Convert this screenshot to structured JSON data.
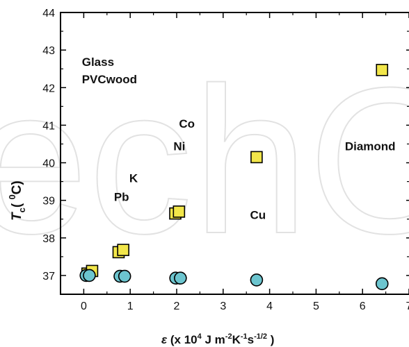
{
  "chart_data": {
    "type": "scatter",
    "xlim": [
      -0.5,
      7
    ],
    "ylim": [
      36.5,
      44
    ],
    "x_ticks": [
      "0",
      "1",
      "2",
      "3",
      "4",
      "5",
      "6",
      "7"
    ],
    "y_ticks": [
      "37",
      "38",
      "39",
      "40",
      "41",
      "42",
      "43",
      "44"
    ],
    "xlabel": {
      "symbol": "ε",
      "text_a": " (x 10",
      "sup_a": "4",
      "text_b": " J m",
      "sup_b": "-2",
      "text_c": "K",
      "sup_c": "-1",
      "text_d": "s",
      "sup_d": "-1/2",
      "text_e": " )"
    },
    "ylabel": {
      "symbol": "T",
      "sub": "c",
      "text_a": "( ",
      "sup": "0",
      "text_b": "C)"
    },
    "grid": false,
    "legend": "none",
    "series": [
      {
        "marker": "square",
        "color": "#f2e64a",
        "points": [
          {
            "x": 0.08,
            "y": 37.05
          },
          {
            "x": 0.18,
            "y": 37.12
          },
          {
            "x": 0.75,
            "y": 37.62
          },
          {
            "x": 0.85,
            "y": 37.68
          },
          {
            "x": 1.97,
            "y": 38.65
          },
          {
            "x": 2.05,
            "y": 38.7
          },
          {
            "x": 3.72,
            "y": 40.15
          },
          {
            "x": 6.42,
            "y": 42.47
          }
        ]
      },
      {
        "marker": "circle",
        "color": "#6cc5cf",
        "points": [
          {
            "x": 0.05,
            "y": 37.0
          },
          {
            "x": 0.12,
            "y": 37.0
          },
          {
            "x": 0.78,
            "y": 36.98
          },
          {
            "x": 0.88,
            "y": 36.98
          },
          {
            "x": 1.98,
            "y": 36.93
          },
          {
            "x": 2.08,
            "y": 36.93
          },
          {
            "x": 3.72,
            "y": 36.88
          },
          {
            "x": 6.42,
            "y": 36.78
          }
        ]
      }
    ],
    "annotations": [
      {
        "text": "Glass",
        "x": -0.04,
        "y": 42.58
      },
      {
        "text": "PVCwood",
        "x": -0.04,
        "y": 42.12
      },
      {
        "text": "Co",
        "x": 2.05,
        "y": 40.93
      },
      {
        "text": "Ni",
        "x": 1.93,
        "y": 40.33
      },
      {
        "text": "Diamond",
        "x": 5.62,
        "y": 40.33
      },
      {
        "text": "K",
        "x": 0.98,
        "y": 39.48
      },
      {
        "text": "Pb",
        "x": 0.65,
        "y": 38.98
      },
      {
        "text": "Cu",
        "x": 3.58,
        "y": 38.5
      }
    ],
    "watermark": "echOp"
  }
}
